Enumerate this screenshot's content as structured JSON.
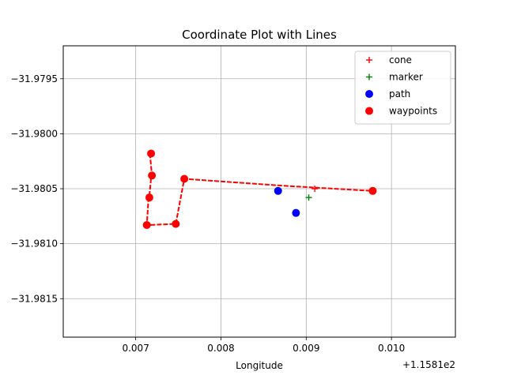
{
  "chart_data": {
    "type": "scatter",
    "title": "Coordinate Plot with Lines",
    "xlabel": "Longitude",
    "ylabel": "",
    "x_offset_label": "+1.1581e2",
    "xlim": [
      0.00615,
      0.01075
    ],
    "ylim": [
      -31.98185,
      -31.9792
    ],
    "x_ticks": [
      {
        "value": 0.007,
        "label": "0.007"
      },
      {
        "value": 0.008,
        "label": "0.008"
      },
      {
        "value": 0.009,
        "label": "0.009"
      },
      {
        "value": 0.01,
        "label": "0.010"
      }
    ],
    "y_ticks": [
      {
        "value": -31.9795,
        "label": "−31.9795"
      },
      {
        "value": -31.98,
        "label": "−31.9800"
      },
      {
        "value": -31.9805,
        "label": "−31.9805"
      },
      {
        "value": -31.981,
        "label": "−31.9810"
      },
      {
        "value": -31.9815,
        "label": "−31.9815"
      }
    ],
    "grid": true,
    "legend_position": "top-right",
    "line": {
      "color": "#ff0000",
      "style": "dashed",
      "points": [
        [
          0.00718,
          -31.98018
        ],
        [
          0.00717,
          -31.98021
        ],
        [
          0.00719,
          -31.98038
        ],
        [
          0.00718,
          -31.9804
        ],
        [
          0.00716,
          -31.98057
        ],
        [
          0.00715,
          -31.98059
        ],
        [
          0.00713,
          -31.98083
        ],
        [
          0.00747,
          -31.98082
        ],
        [
          0.00757,
          -31.98041
        ],
        [
          0.00867,
          -31.98047
        ],
        [
          0.0091,
          -31.98049
        ],
        [
          0.00978,
          -31.98052
        ]
      ]
    },
    "series": [
      {
        "name": "cone",
        "marker": "plus",
        "color": "#ff0000",
        "points": [
          [
            0.0091,
            -31.9805
          ]
        ]
      },
      {
        "name": "marker",
        "marker": "plus",
        "color": "#008000",
        "points": [
          [
            0.00903,
            -31.98058
          ]
        ]
      },
      {
        "name": "path",
        "marker": "circle",
        "color": "#0000ff",
        "points": [
          [
            0.00867,
            -31.98052
          ],
          [
            0.00888,
            -31.98072
          ]
        ]
      },
      {
        "name": "waypoints",
        "marker": "circle",
        "color": "#ff0000",
        "points": [
          [
            0.00718,
            -31.98018
          ],
          [
            0.00719,
            -31.98038
          ],
          [
            0.00716,
            -31.98058
          ],
          [
            0.00713,
            -31.98083
          ],
          [
            0.00747,
            -31.98082
          ],
          [
            0.00757,
            -31.98041
          ],
          [
            0.00978,
            -31.98052
          ]
        ]
      }
    ]
  }
}
